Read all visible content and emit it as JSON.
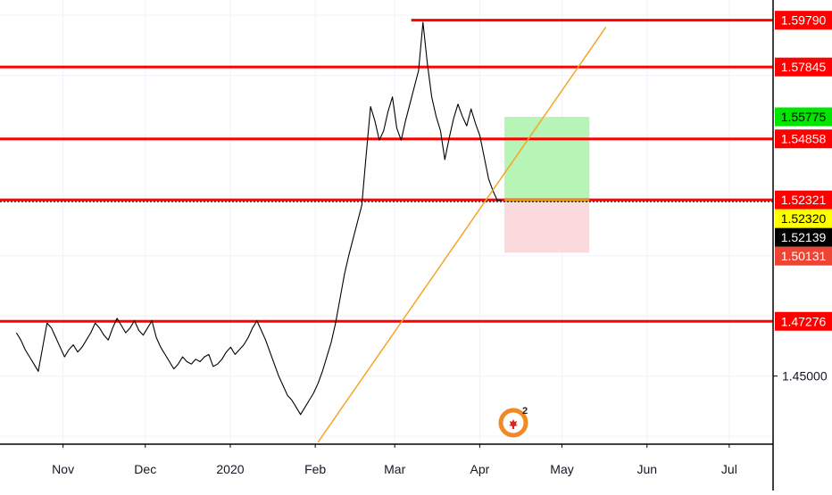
{
  "chart_data": {
    "type": "line",
    "x_ticks": [
      "Nov",
      "Dec",
      "2020",
      "Feb",
      "Mar",
      "Apr",
      "May",
      "Jun",
      "Jul"
    ],
    "y_ticks": [
      "1.45000"
    ],
    "ylim": [
      1.4217,
      1.6063
    ],
    "grid": true,
    "price_series": {
      "color": "#000000",
      "values": [
        1.468,
        1.465,
        1.461,
        1.458,
        1.455,
        1.452,
        1.462,
        1.472,
        1.47,
        1.466,
        1.462,
        1.458,
        1.461,
        1.463,
        1.46,
        1.462,
        1.465,
        1.468,
        1.472,
        1.47,
        1.467,
        1.465,
        1.47,
        1.474,
        1.471,
        1.468,
        1.47,
        1.473,
        1.469,
        1.467,
        1.47,
        1.473,
        1.466,
        1.462,
        1.459,
        1.456,
        1.453,
        1.455,
        1.458,
        1.456,
        1.455,
        1.457,
        1.456,
        1.458,
        1.459,
        1.454,
        1.455,
        1.457,
        1.46,
        1.462,
        1.459,
        1.461,
        1.463,
        1.466,
        1.47,
        1.473,
        1.469,
        1.465,
        1.46,
        1.455,
        1.45,
        1.446,
        1.442,
        1.44,
        1.437,
        1.434,
        1.437,
        1.44,
        1.443,
        1.447,
        1.452,
        1.458,
        1.464,
        1.472,
        1.482,
        1.492,
        1.5,
        1.507,
        1.514,
        1.521,
        1.542,
        1.562,
        1.556,
        1.548,
        1.552,
        1.56,
        1.566,
        1.553,
        1.548,
        1.556,
        1.563,
        1.57,
        1.577,
        1.597,
        1.58,
        1.566,
        1.558,
        1.552,
        1.54,
        1.549,
        1.557,
        1.563,
        1.558,
        1.554,
        1.561,
        1.555,
        1.55,
        1.541,
        1.532,
        1.527,
        1.523,
        1.523
      ],
      "start": "2019-10-15",
      "end": "2020-04-09"
    },
    "horizontal_levels": [
      1.5979,
      1.57845,
      1.54858,
      1.52321,
      1.47276
    ],
    "current_price_line": 1.5232,
    "trendline": {
      "color": "#f5a623",
      "points": [
        {
          "date": "2020-02-02",
          "price": 1.4225
        },
        {
          "date": "2020-05-17",
          "price": 1.595
        }
      ]
    },
    "position_box": {
      "entry": 1.5232,
      "target": 1.55775,
      "stop": 1.50131,
      "start": "2020-04-10",
      "end": "2020-05-11"
    },
    "price_labels": [
      {
        "text": "1.59790",
        "value": 1.5979,
        "bg": "#ff0000",
        "color": "#ffffff"
      },
      {
        "text": "1.57845",
        "value": 1.57845,
        "bg": "#ff0000",
        "color": "#ffffff"
      },
      {
        "text": "1.55775",
        "value": 1.55775,
        "bg": "#00e600",
        "color": "#000000"
      },
      {
        "text": "1.54858",
        "value": 1.54858,
        "bg": "#ff0000",
        "color": "#ffffff"
      },
      {
        "text": "1.52321",
        "value": 1.52321,
        "bg": "#ff0000",
        "color": "#ffffff"
      },
      {
        "text": "1.52320",
        "value": 1.5232,
        "bg": "#ffff00",
        "color": "#000000"
      },
      {
        "text": "1.52139",
        "value": 1.52139,
        "bg": "#000000",
        "color": "#ffffff"
      },
      {
        "text": "1.50131",
        "value": 1.50131,
        "bg": "#ee4433",
        "color": "#ffffff"
      },
      {
        "text": "1.47276",
        "value": 1.47276,
        "bg": "#ff0000",
        "color": "#ffffff"
      }
    ],
    "colors": {
      "level_line": "#ff0000",
      "target_zone": "#b7f5b7",
      "stop_zone": "#fadadd",
      "grid": "#f0f3fa",
      "axis": "#000000"
    }
  },
  "logo": {
    "text": "2"
  }
}
